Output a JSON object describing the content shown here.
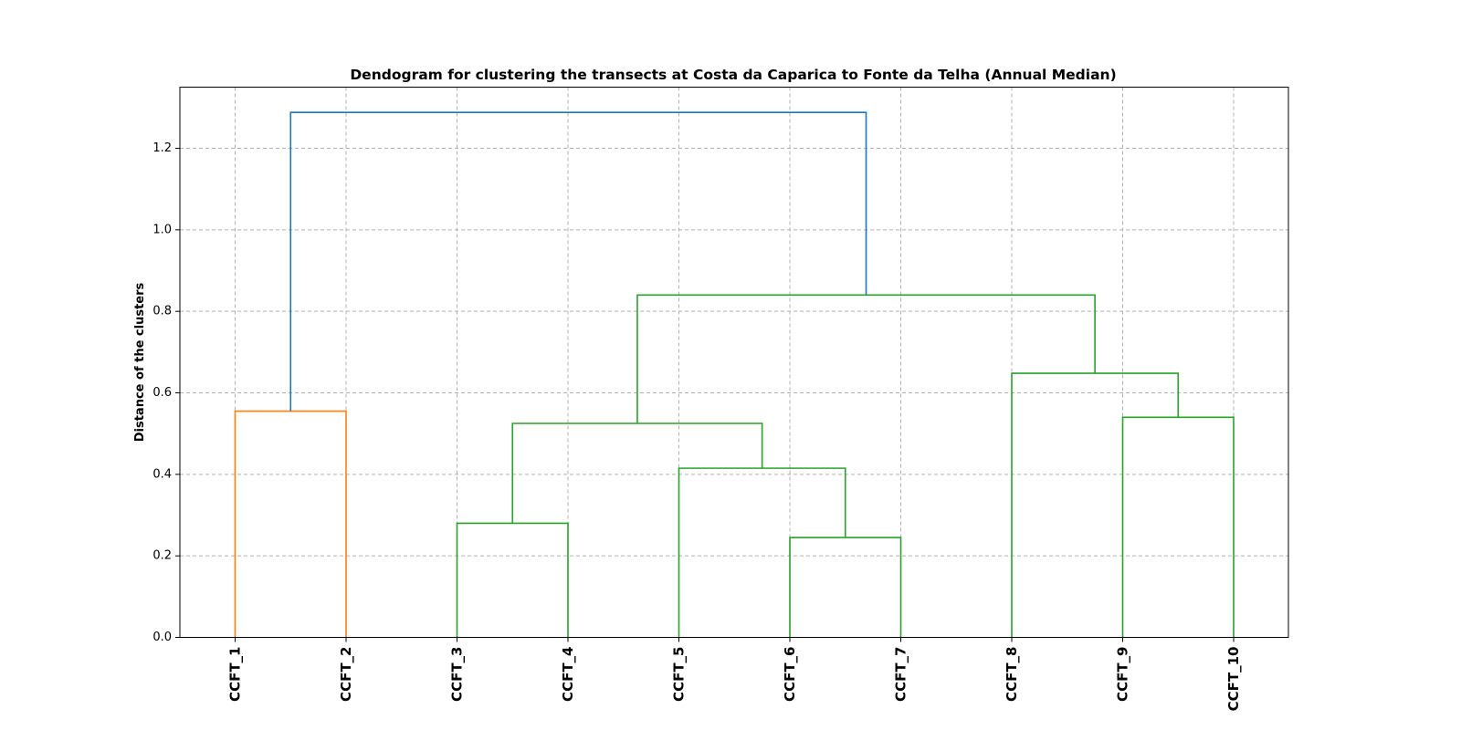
{
  "chart_data": {
    "type": "dendrogram",
    "title": "Dendogram for clustering the transects at Costa da Caparica to Fonte da Telha (Annual Median)",
    "xlabel": "",
    "ylabel": "Distance of the clusters",
    "ylim": [
      0,
      1.35
    ],
    "yticks": [
      "0.0",
      "0.2",
      "0.4",
      "0.6",
      "0.8",
      "1.0",
      "1.2"
    ],
    "ytick_values": [
      0.0,
      0.2,
      0.4,
      0.6,
      0.8,
      1.0,
      1.2
    ],
    "grid": true,
    "leaves": [
      "CCFT_1",
      "CCFT_2",
      "CCFT_3",
      "CCFT_4",
      "CCFT_5",
      "CCFT_6",
      "CCFT_7",
      "CCFT_8",
      "CCFT_9",
      "CCFT_10"
    ],
    "colors": {
      "cluster_1": "#ff7f0e",
      "cluster_2": "#2ca02c",
      "root": "#1f77b4"
    },
    "merges": [
      {
        "left": "CCFT_1",
        "right": "CCFT_2",
        "height": 0.555,
        "color": "cluster_1"
      },
      {
        "left": "CCFT_6",
        "right": "CCFT_7",
        "height": 0.245,
        "color": "cluster_2"
      },
      {
        "left": "CCFT_3",
        "right": "CCFT_4",
        "height": 0.28,
        "color": "cluster_2"
      },
      {
        "left": "CCFT_5",
        "right": "(CCFT_6,CCFT_7)",
        "height": 0.415,
        "color": "cluster_2"
      },
      {
        "left": "(CCFT_3,CCFT_4)",
        "right": "(CCFT_5,CCFT_6,CCFT_7)",
        "height": 0.525,
        "color": "cluster_2"
      },
      {
        "left": "CCFT_9",
        "right": "CCFT_10",
        "height": 0.54,
        "color": "cluster_2"
      },
      {
        "left": "CCFT_8",
        "right": "(CCFT_9,CCFT_10)",
        "height": 0.648,
        "color": "cluster_2"
      },
      {
        "left": "(CCFT_3..CCFT_7)",
        "right": "(CCFT_8..CCFT_10)",
        "height": 0.84,
        "color": "cluster_2"
      },
      {
        "left": "(CCFT_1,CCFT_2)",
        "right": "(CCFT_3..CCFT_10)",
        "height": 1.288,
        "color": "root"
      }
    ]
  }
}
